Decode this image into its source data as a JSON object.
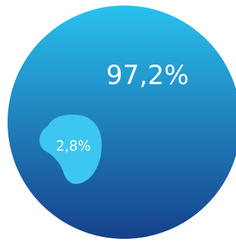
{
  "chart_data": {
    "type": "pie",
    "title": "",
    "slices": [
      {
        "label": "97,2%",
        "value": 97.2,
        "color": "#1e7fc8"
      },
      {
        "label": "2,8%",
        "value": 2.8,
        "color": "#3cc6f0"
      }
    ],
    "gradient": {
      "top": "#29c1ee",
      "bottom": "#16408a"
    },
    "legend": "none",
    "grid": false
  }
}
